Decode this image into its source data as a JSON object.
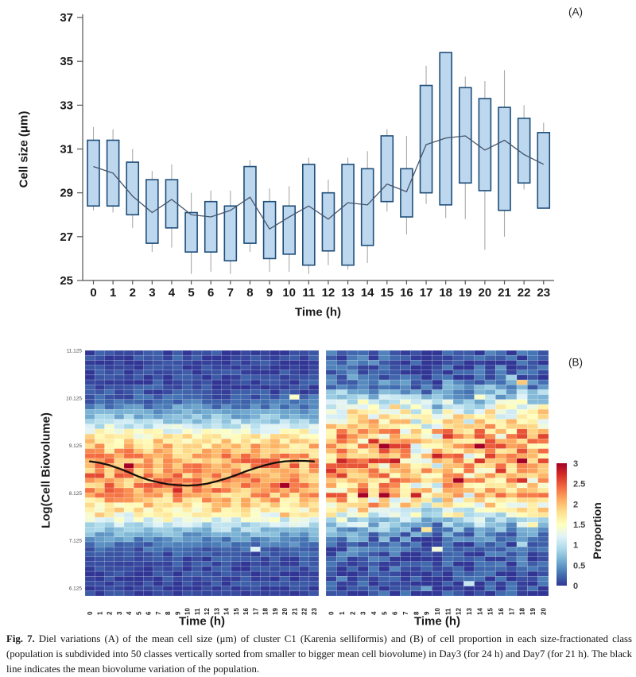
{
  "figure": {
    "panel_a_label": "(A)",
    "panel_b_label": "(B)",
    "caption_prefix": "Fig. 7.",
    "caption_text": " Diel variations (A) of the mean cell size (μm) of cluster C1 (Karenia selliformis) and (B) of cell proportion in each size-fractionated class (population is subdivided into 50 classes vertically sorted from smaller to bigger mean cell biovolume) in Day3 (for 24 h) and Day7 (for 21 h). The black line indicates the mean biovolume variation of the population."
  },
  "chart_data": [
    {
      "type": "box",
      "name": "cell-size-boxplot",
      "xlabel": "Time (h)",
      "ylabel": "Cell size (μm)",
      "ylim": [
        25,
        37
      ],
      "yticks": [
        25,
        27,
        29,
        31,
        33,
        35,
        37
      ],
      "categories": [
        "0",
        "1",
        "2",
        "3",
        "4",
        "5",
        "6",
        "7",
        "8",
        "9",
        "10",
        "11",
        "12",
        "13",
        "14",
        "15",
        "16",
        "17",
        "18",
        "19",
        "20",
        "21",
        "22",
        "23"
      ],
      "whisker_low": [
        28.2,
        28.1,
        27.4,
        26.3,
        26.5,
        25.3,
        25.4,
        25.3,
        26.3,
        25.4,
        25.4,
        25.3,
        25.7,
        25.5,
        25.8,
        28.15,
        27.1,
        28.5,
        27.85,
        27.8,
        26.4,
        27.0,
        29.15,
        28.3
      ],
      "box_low": [
        28.4,
        28.4,
        28.0,
        26.7,
        27.4,
        26.3,
        26.3,
        25.9,
        26.7,
        26.0,
        26.2,
        25.7,
        26.35,
        25.7,
        26.6,
        28.6,
        27.9,
        29.0,
        28.45,
        29.45,
        29.1,
        28.2,
        29.45,
        28.3
      ],
      "box_high": [
        31.4,
        31.4,
        30.4,
        29.6,
        29.6,
        28.1,
        28.6,
        28.4,
        30.2,
        28.6,
        28.4,
        30.3,
        29.0,
        30.3,
        30.1,
        31.6,
        30.1,
        33.9,
        35.4,
        33.8,
        33.3,
        32.9,
        32.4,
        31.75
      ],
      "whisker_high": [
        32.0,
        31.9,
        31.0,
        30.0,
        30.3,
        29.0,
        29.1,
        29.1,
        30.5,
        29.2,
        29.3,
        30.6,
        29.6,
        30.6,
        30.9,
        31.9,
        31.6,
        34.8,
        35.4,
        34.3,
        34.1,
        34.6,
        33.0,
        32.2
      ],
      "mean_line": [
        30.2,
        29.9,
        28.85,
        28.1,
        28.7,
        28.0,
        27.9,
        28.2,
        28.8,
        27.35,
        27.9,
        28.4,
        27.8,
        28.55,
        28.45,
        29.4,
        29.05,
        31.2,
        31.5,
        31.6,
        30.95,
        31.4,
        30.75,
        30.3
      ],
      "colors": {
        "box_fill": "#bdd7ee",
        "box_stroke": "#1f4e79",
        "whisker": "#a9a9a9",
        "mean_line": "#44546a",
        "axis": "#555555",
        "tick_text": "#1a1a1a"
      }
    },
    {
      "type": "heatmap",
      "name": "Day3",
      "xlabel": "Time (h)",
      "ylabel": "Log(Cell Biovolume)",
      "x_labels": [
        "0",
        "1",
        "2",
        "3",
        "4",
        "5",
        "6",
        "7",
        "8",
        "9",
        "10",
        "11",
        "12",
        "13",
        "14",
        "15",
        "16",
        "17",
        "18",
        "19",
        "20",
        "21",
        "22",
        "23"
      ],
      "y_tick_labels": [
        "11.125",
        "10.125",
        "9.125",
        "8.125",
        "7.125",
        "6.125"
      ],
      "rows": 50,
      "proportion_range": [
        0,
        3
      ],
      "row_profile_approx": [
        0.08,
        0.08,
        0.08,
        0.08,
        0.09,
        0.09,
        0.1,
        0.12,
        0.15,
        0.2,
        0.28,
        0.38,
        0.52,
        0.7,
        0.9,
        1.12,
        1.35,
        1.57,
        1.76,
        1.91,
        2.02,
        2.09,
        2.13,
        2.15,
        2.16,
        2.16,
        2.15,
        2.13,
        2.09,
        2.02,
        1.93,
        1.8,
        1.64,
        1.45,
        1.24,
        1.02,
        0.8,
        0.6,
        0.43,
        0.3,
        0.21,
        0.15,
        0.12,
        0.1,
        0.09,
        0.08,
        0.08,
        0.08,
        0.08,
        0.08
      ],
      "col_mod": [
        0,
        0,
        0,
        0,
        0,
        0,
        0,
        0,
        0,
        0,
        0,
        0,
        0,
        0,
        0,
        0,
        0,
        0,
        0,
        0,
        0,
        0,
        0,
        0
      ],
      "noise": 0.42,
      "spike_chance": 0.05,
      "spike_amp": 0.85,
      "rare_spike_chance": 0.004,
      "seed": 1234,
      "mean_biovolume_line": [
        8.79,
        8.76,
        8.71,
        8.64,
        8.56,
        8.47,
        8.4,
        8.35,
        8.31,
        8.29,
        8.28,
        8.29,
        8.32,
        8.37,
        8.43,
        8.5,
        8.58,
        8.65,
        8.71,
        8.76,
        8.79,
        8.8,
        8.8,
        8.79
      ],
      "line_color": "#16100a"
    },
    {
      "type": "heatmap",
      "name": "Day7",
      "xlabel": "Time (h)",
      "x_labels": [
        "0",
        "1",
        "2",
        "3",
        "4",
        "5",
        "6",
        "7",
        "8",
        "9",
        "10",
        "11",
        "12",
        "13",
        "14",
        "15",
        "16",
        "17",
        "18",
        "19",
        "20"
      ],
      "rows": 50,
      "proportion_range": [
        0,
        3
      ],
      "row_profile_approx": [
        0.15,
        0.15,
        0.16,
        0.16,
        0.17,
        0.18,
        0.34,
        0.46,
        0.63,
        0.83,
        1.05,
        1.26,
        1.45,
        1.62,
        1.75,
        1.85,
        1.92,
        1.96,
        1.98,
        1.99,
        2.0,
        2.0,
        2.0,
        2.0,
        1.99,
        1.98,
        1.96,
        1.93,
        1.89,
        1.85,
        1.75,
        1.62,
        1.45,
        1.26,
        1.05,
        0.83,
        0.63,
        0.46,
        0.34,
        0.25,
        0.19,
        0.16,
        0.15,
        0.14,
        0.14,
        0.13,
        0.13,
        0.12,
        0.12,
        0.12
      ],
      "col_mod": [
        0.05,
        0.1,
        0.15,
        0.1,
        0.05,
        0,
        0,
        -0.05,
        -0.25,
        -0.3,
        -0.45,
        -0.1,
        0,
        -0.2,
        -0.05,
        0.05,
        0,
        -0.05,
        0.1,
        0,
        0.05
      ],
      "noise": 0.72,
      "spike_chance": 0.08,
      "spike_amp": 1.0,
      "rare_spike_chance": 0.012,
      "seed": 987
    }
  ],
  "colorbar": {
    "label": "Proportion",
    "ticks": [
      "3",
      "2.5",
      "2",
      "1.5",
      "1",
      "0.5",
      "0"
    ],
    "tick_values": [
      3,
      2.5,
      2,
      1.5,
      1,
      0.5,
      0
    ],
    "min": 0,
    "max": 3,
    "stops": [
      "#313695",
      "#4575b4",
      "#74add1",
      "#abd9e9",
      "#e0f3f8",
      "#ffffbf",
      "#fee090",
      "#fdae61",
      "#f46d43",
      "#d73027",
      "#a50026"
    ]
  }
}
